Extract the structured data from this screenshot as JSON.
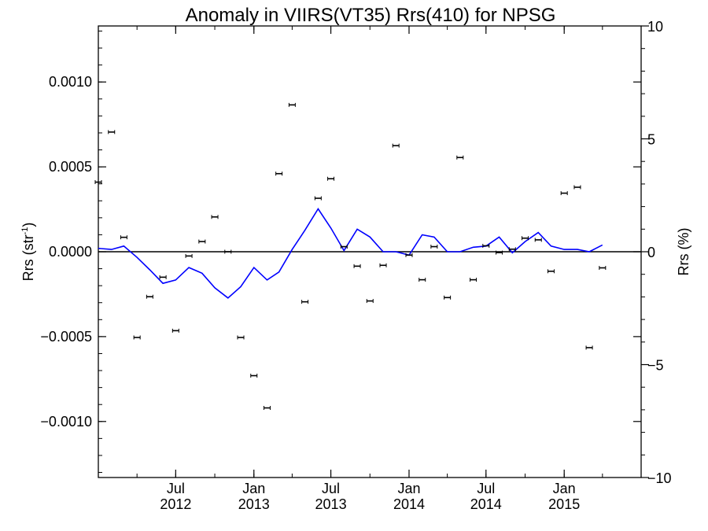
{
  "chart_data": {
    "type": "scatter",
    "title": "Anomaly in VIIRS(VT35) Rrs(410) for NPSG",
    "ylabel_left_main": "Rrs (str",
    "ylabel_left_sup": "-1",
    "ylabel_left_close": ")",
    "ylabel_right": "Rrs (%)",
    "x_axis_type": "time",
    "xlim": [
      "2012-01-01",
      "2015-07-01"
    ],
    "ylim_left": [
      -0.00133,
      0.00133
    ],
    "ylim_right": [
      -10,
      10
    ],
    "left_ticks": [
      {
        "value": 0.001,
        "label": "0.0010"
      },
      {
        "value": 0.0005,
        "label": "0.0005"
      },
      {
        "value": 0.0,
        "label": "0.0000"
      },
      {
        "value": -0.0005,
        "label": "−0.0005"
      },
      {
        "value": -0.001,
        "label": "−0.0010"
      }
    ],
    "right_ticks": [
      {
        "value": 10,
        "label": "10"
      },
      {
        "value": 5,
        "label": "5"
      },
      {
        "value": 0,
        "label": "0"
      },
      {
        "value": -5,
        "label": "−5"
      },
      {
        "value": -10,
        "label": "−10"
      }
    ],
    "x_ticks": [
      {
        "date": "2012-07-01",
        "month": "Jul",
        "year": "2012"
      },
      {
        "date": "2013-01-01",
        "month": "Jan",
        "year": "2013"
      },
      {
        "date": "2013-07-01",
        "month": "Jul",
        "year": "2013"
      },
      {
        "date": "2014-01-01",
        "month": "Jan",
        "year": "2014"
      },
      {
        "date": "2014-07-01",
        "month": "Jul",
        "year": "2014"
      },
      {
        "date": "2015-01-01",
        "month": "Jan",
        "year": "2015"
      }
    ],
    "series": [
      {
        "axis": "left",
        "color": "#000000",
        "marker": "errorbar",
        "points": [
          {
            "x": "2012-01-01",
            "y": 0.00041
          },
          {
            "x": "2012-02-01",
            "y": 0.000705
          },
          {
            "x": "2012-03-01",
            "y": 8.5e-05
          },
          {
            "x": "2012-04-01",
            "y": -0.000505
          },
          {
            "x": "2012-05-01",
            "y": -0.000265
          },
          {
            "x": "2012-06-01",
            "y": -0.00015
          },
          {
            "x": "2012-07-01",
            "y": -0.000465
          },
          {
            "x": "2012-08-01",
            "y": -2.5e-05
          },
          {
            "x": "2012-09-01",
            "y": 6e-05
          },
          {
            "x": "2012-10-01",
            "y": 0.000205
          },
          {
            "x": "2012-11-01",
            "y": 0.0
          },
          {
            "x": "2012-12-01",
            "y": -0.000505
          },
          {
            "x": "2013-01-01",
            "y": -0.00073
          },
          {
            "x": "2013-02-01",
            "y": -0.00092
          },
          {
            "x": "2013-03-01",
            "y": 0.00046
          },
          {
            "x": "2013-04-01",
            "y": 0.000865
          },
          {
            "x": "2013-05-01",
            "y": -0.000295
          },
          {
            "x": "2013-06-01",
            "y": 0.000315
          },
          {
            "x": "2013-07-01",
            "y": 0.00043
          },
          {
            "x": "2013-08-01",
            "y": 3e-05
          },
          {
            "x": "2013-09-01",
            "y": -8.5e-05
          },
          {
            "x": "2013-10-01",
            "y": -0.00029
          },
          {
            "x": "2013-11-01",
            "y": -8e-05
          },
          {
            "x": "2013-12-01",
            "y": 0.000625
          },
          {
            "x": "2014-01-01",
            "y": -2e-05
          },
          {
            "x": "2014-02-01",
            "y": -0.000165
          },
          {
            "x": "2014-03-01",
            "y": 3e-05
          },
          {
            "x": "2014-04-01",
            "y": -0.00027
          },
          {
            "x": "2014-05-01",
            "y": 0.000555
          },
          {
            "x": "2014-06-01",
            "y": -0.000165
          },
          {
            "x": "2014-07-01",
            "y": 3.5e-05
          },
          {
            "x": "2014-08-01",
            "y": -5e-06
          },
          {
            "x": "2014-09-01",
            "y": 1.5e-05
          },
          {
            "x": "2014-10-01",
            "y": 8e-05
          },
          {
            "x": "2014-11-01",
            "y": 7e-05
          },
          {
            "x": "2014-12-01",
            "y": -0.000115
          },
          {
            "x": "2015-01-01",
            "y": 0.000345
          },
          {
            "x": "2015-02-01",
            "y": 0.00038
          },
          {
            "x": "2015-03-01",
            "y": -0.000565
          },
          {
            "x": "2015-04-01",
            "y": -9.5e-05
          }
        ]
      },
      {
        "axis": "right",
        "color": "#0000ff",
        "marker": "line",
        "points": [
          {
            "x": "2012-01-01",
            "y": 0.15
          },
          {
            "x": "2012-02-01",
            "y": 0.1
          },
          {
            "x": "2012-03-01",
            "y": 0.25
          },
          {
            "x": "2012-04-01",
            "y": -0.25
          },
          {
            "x": "2012-05-01",
            "y": -0.8
          },
          {
            "x": "2012-06-01",
            "y": -1.4
          },
          {
            "x": "2012-07-01",
            "y": -1.25
          },
          {
            "x": "2012-08-01",
            "y": -0.7
          },
          {
            "x": "2012-09-01",
            "y": -0.95
          },
          {
            "x": "2012-10-01",
            "y": -1.6
          },
          {
            "x": "2012-11-01",
            "y": -2.05
          },
          {
            "x": "2012-12-01",
            "y": -1.55
          },
          {
            "x": "2013-01-01",
            "y": -0.7
          },
          {
            "x": "2013-02-01",
            "y": -1.25
          },
          {
            "x": "2013-03-01",
            "y": -0.9
          },
          {
            "x": "2013-04-01",
            "y": 0.1
          },
          {
            "x": "2013-05-01",
            "y": 0.95
          },
          {
            "x": "2013-06-01",
            "y": 1.9
          },
          {
            "x": "2013-07-01",
            "y": 1.05
          },
          {
            "x": "2013-08-01",
            "y": 0.05
          },
          {
            "x": "2013-09-01",
            "y": 1.0
          },
          {
            "x": "2013-10-01",
            "y": 0.65
          },
          {
            "x": "2013-11-01",
            "y": 0.0
          },
          {
            "x": "2013-12-01",
            "y": 0.0
          },
          {
            "x": "2014-01-01",
            "y": -0.15
          },
          {
            "x": "2014-02-01",
            "y": 0.75
          },
          {
            "x": "2014-03-01",
            "y": 0.65
          },
          {
            "x": "2014-04-01",
            "y": 0.0
          },
          {
            "x": "2014-05-01",
            "y": 0.0
          },
          {
            "x": "2014-06-01",
            "y": 0.2
          },
          {
            "x": "2014-07-01",
            "y": 0.25
          },
          {
            "x": "2014-08-01",
            "y": 0.65
          },
          {
            "x": "2014-09-01",
            "y": -0.05
          },
          {
            "x": "2014-10-01",
            "y": 0.45
          },
          {
            "x": "2014-11-01",
            "y": 0.85
          },
          {
            "x": "2014-12-01",
            "y": 0.25
          },
          {
            "x": "2015-01-01",
            "y": 0.1
          },
          {
            "x": "2015-02-01",
            "y": 0.1
          },
          {
            "x": "2015-03-01",
            "y": 0.0
          },
          {
            "x": "2015-04-01",
            "y": 0.3
          }
        ]
      }
    ],
    "zero_line": true,
    "grid": false
  }
}
